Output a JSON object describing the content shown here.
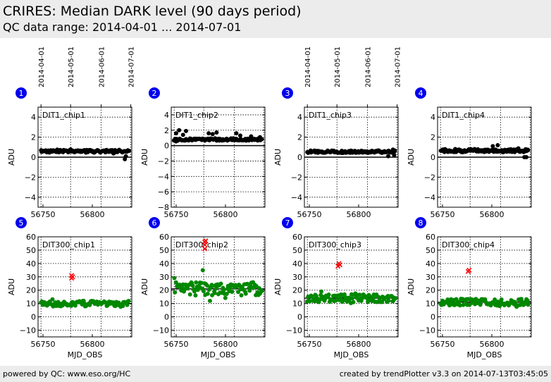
{
  "header": {
    "title": "CRIRES: Median DARK level (90 days period)",
    "subtitle": "QC data range: 2014-04-01 ... 2014-07-01"
  },
  "footer": {
    "left": "powered by QC: www.eso.org/HC",
    "right": "created by trendPlotter v3.3 on 2014-07-13T03:45:05"
  },
  "date_ticks": [
    "2014-04-01",
    "2014-05-01",
    "2014-06-01",
    "2014-07-01"
  ],
  "colors": {
    "badge": "#0000ee",
    "ok": "#000000",
    "green": "#008800",
    "outlier": "#ff0000"
  },
  "chart_data": [
    {
      "type": "scatter",
      "index": "1",
      "label": "DIT1_chip1",
      "xlabel": "",
      "ylabel": "ADU",
      "xlim": [
        56745,
        56840
      ],
      "ylim": [
        -5,
        5
      ],
      "yticks": [
        -4,
        -2,
        0,
        2,
        4
      ],
      "xticks": [
        56750,
        56800
      ],
      "hlines": [
        0
      ],
      "marker_color": "#000000",
      "seed": 11,
      "n_points": 110,
      "base": 0.6,
      "noise": 0.12,
      "sparse_noise": [
        [
          56833,
          -0.2
        ],
        [
          56834,
          0.1
        ]
      ],
      "outliers": []
    },
    {
      "type": "scatter",
      "index": "2",
      "label": "DIT1_chip2",
      "xlabel": "",
      "ylabel": "ADU",
      "xlim": [
        56745,
        56840
      ],
      "ylim": [
        -8,
        5
      ],
      "yticks": [
        -8,
        -6,
        -4,
        -2,
        0,
        2,
        4
      ],
      "xticks": [
        56750,
        56800
      ],
      "hlines": [
        0
      ],
      "marker_color": "#000000",
      "seed": 22,
      "n_points": 100,
      "base": 0.8,
      "noise": 0.15,
      "sparse_noise": [
        [
          56750,
          1.6
        ],
        [
          56753,
          2.0
        ],
        [
          56757,
          1.4
        ],
        [
          56760,
          1.9
        ],
        [
          56783,
          1.6
        ],
        [
          56787,
          1.5
        ],
        [
          56791,
          1.7
        ],
        [
          56811,
          1.6
        ],
        [
          56815,
          1.3
        ],
        [
          56826,
          1.2
        ],
        [
          56835,
          1.1
        ]
      ],
      "outliers": []
    },
    {
      "type": "scatter",
      "index": "3",
      "label": "DIT1_chip3",
      "xlabel": "",
      "ylabel": "ADU",
      "xlim": [
        56745,
        56840
      ],
      "ylim": [
        -5,
        5
      ],
      "yticks": [
        -4,
        -2,
        0,
        2,
        4
      ],
      "xticks": [
        56750,
        56800
      ],
      "hlines": [
        0
      ],
      "marker_color": "#000000",
      "seed": 33,
      "n_points": 110,
      "base": 0.55,
      "noise": 0.12,
      "sparse_noise": [
        [
          56830,
          0.1
        ],
        [
          56836,
          0.2
        ]
      ],
      "outliers": []
    },
    {
      "type": "scatter",
      "index": "4",
      "label": "DIT1_chip4",
      "xlabel": "",
      "ylabel": "ADU",
      "xlim": [
        56745,
        56840
      ],
      "ylim": [
        -5,
        5
      ],
      "yticks": [
        -4,
        -2,
        0,
        2,
        4
      ],
      "xticks": [
        56750,
        56800
      ],
      "hlines": [
        0
      ],
      "marker_color": "#000000",
      "seed": 44,
      "n_points": 110,
      "base": 0.65,
      "noise": 0.15,
      "sparse_noise": [
        [
          56801,
          1.1
        ],
        [
          56806,
          1.2
        ],
        [
          56833,
          0.0
        ],
        [
          56835,
          0.0
        ]
      ],
      "outliers": []
    },
    {
      "type": "scatter",
      "index": "5",
      "label": "DIT300_chip1",
      "xlabel": "MJD_OBS",
      "ylabel": "ADU",
      "xlim": [
        56745,
        56840
      ],
      "ylim": [
        -15,
        60
      ],
      "yticks": [
        -10,
        0,
        10,
        20,
        30,
        40,
        50,
        60
      ],
      "xticks": [
        56750,
        56800
      ],
      "hlines": [
        10
      ],
      "marker_color": "#008800",
      "seed": 55,
      "n_points": 100,
      "base": 10,
      "noise": 2.0,
      "sparse_noise": [],
      "outliers": [
        [
          56779,
          29
        ],
        [
          56779,
          31
        ],
        [
          56780,
          30
        ]
      ]
    },
    {
      "type": "scatter",
      "index": "6",
      "label": "DIT300_chip2",
      "xlabel": "MJD_OBS",
      "ylabel": "ADU",
      "xlim": [
        56745,
        56840
      ],
      "ylim": [
        -15,
        60
      ],
      "yticks": [
        -10,
        0,
        10,
        20,
        30,
        40,
        50,
        60
      ],
      "xticks": [
        56750,
        56800
      ],
      "hlines": [
        21
      ],
      "marker_color": "#008800",
      "seed": 66,
      "n_points": 100,
      "base": 21,
      "noise": 5.0,
      "sparse_noise": [
        [
          56777,
          35
        ]
      ],
      "outliers": [
        [
          56779,
          51
        ],
        [
          56779,
          54
        ],
        [
          56779,
          56
        ],
        [
          56780,
          57
        ]
      ]
    },
    {
      "type": "scatter",
      "index": "7",
      "label": "DIT300_chip3",
      "xlabel": "MJD_OBS",
      "ylabel": "ADU",
      "xlim": [
        56745,
        56840
      ],
      "ylim": [
        -15,
        60
      ],
      "yticks": [
        -10,
        0,
        10,
        20,
        30,
        40,
        50,
        60
      ],
      "xticks": [
        56750,
        56800
      ],
      "hlines": [
        14
      ],
      "marker_color": "#008800",
      "seed": 77,
      "n_points": 100,
      "base": 14,
      "noise": 3.0,
      "sparse_noise": [],
      "outliers": [
        [
          56779,
          38
        ],
        [
          56780,
          40
        ],
        [
          56781,
          39
        ]
      ]
    },
    {
      "type": "scatter",
      "index": "8",
      "label": "DIT300_chip4",
      "xlabel": "MJD_OBS",
      "ylabel": "ADU",
      "xlim": [
        56745,
        56840
      ],
      "ylim": [
        -15,
        60
      ],
      "yticks": [
        -10,
        0,
        10,
        20,
        30,
        40,
        50,
        60
      ],
      "xticks": [
        56750,
        56800
      ],
      "hlines": [
        11
      ],
      "marker_color": "#008800",
      "seed": 88,
      "n_points": 100,
      "base": 11,
      "noise": 2.5,
      "sparse_noise": [],
      "outliers": [
        [
          56776,
          34
        ],
        [
          56777,
          35
        ]
      ]
    }
  ]
}
